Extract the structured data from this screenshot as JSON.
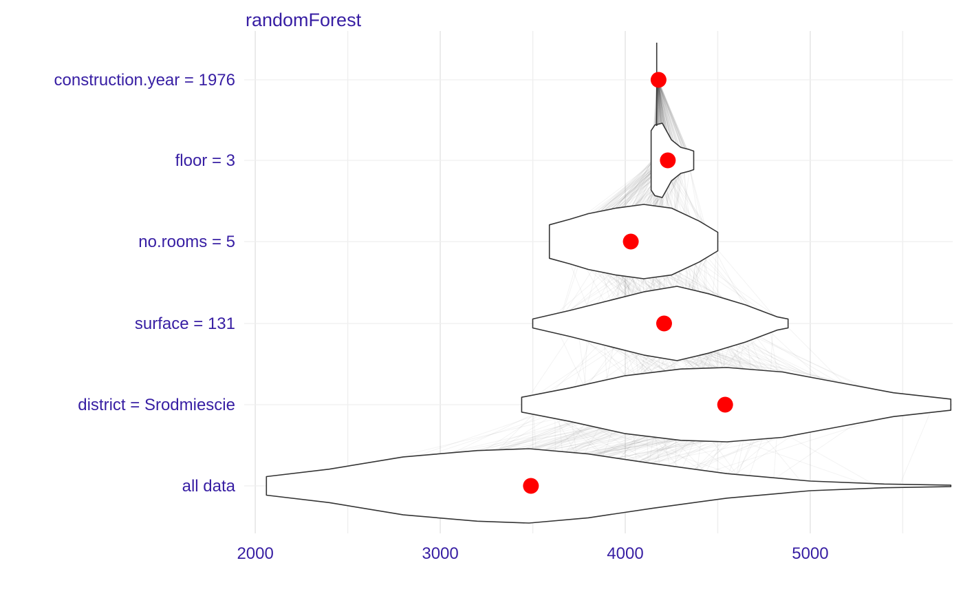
{
  "chart_data": {
    "type": "violin",
    "title": "randomForest",
    "xlabel": "",
    "ylabel": "",
    "xlim": [
      1940,
      5770
    ],
    "x_ticks": [
      2000,
      3000,
      4000,
      5000
    ],
    "x_minor": [
      2500,
      3500,
      4500,
      5500
    ],
    "categories": [
      "construction.year = 1976",
      "floor = 3",
      "no.rooms = 5",
      "surface = 131",
      "district = Srodmiescie",
      "all data"
    ],
    "points": [
      4180,
      4230,
      4030,
      4210,
      4540,
      3490
    ],
    "distributions": [
      {
        "label": "construction.year = 1976",
        "min": 4170,
        "max": 4180,
        "width": [
          [
            4170,
            0.0
          ],
          [
            4180,
            0.0
          ]
        ]
      },
      {
        "label": "floor = 3",
        "min": 4140,
        "max": 4370,
        "width": [
          [
            4140,
            0.8
          ],
          [
            4160,
            0.95
          ],
          [
            4200,
            1.0
          ],
          [
            4250,
            0.55
          ],
          [
            4300,
            0.35
          ],
          [
            4340,
            0.3
          ],
          [
            4370,
            0.25
          ]
        ]
      },
      {
        "label": "no.rooms = 5",
        "min": 3590,
        "max": 4500,
        "width": [
          [
            3590,
            0.45
          ],
          [
            3700,
            0.6
          ],
          [
            3800,
            0.75
          ],
          [
            3950,
            0.9
          ],
          [
            4100,
            1.0
          ],
          [
            4250,
            0.9
          ],
          [
            4400,
            0.55
          ],
          [
            4500,
            0.25
          ]
        ]
      },
      {
        "label": "surface = 131",
        "min": 3500,
        "max": 4880,
        "width": [
          [
            3500,
            0.12
          ],
          [
            3700,
            0.35
          ],
          [
            3900,
            0.6
          ],
          [
            4100,
            0.85
          ],
          [
            4280,
            1.0
          ],
          [
            4450,
            0.8
          ],
          [
            4650,
            0.5
          ],
          [
            4820,
            0.18
          ],
          [
            4880,
            0.12
          ]
        ]
      },
      {
        "label": "district = Srodmiescie",
        "min": 3440,
        "max": 5760,
        "width": [
          [
            3440,
            0.2
          ],
          [
            3700,
            0.45
          ],
          [
            4000,
            0.78
          ],
          [
            4300,
            0.96
          ],
          [
            4550,
            1.0
          ],
          [
            4850,
            0.88
          ],
          [
            5150,
            0.6
          ],
          [
            5450,
            0.32
          ],
          [
            5760,
            0.15
          ]
        ]
      },
      {
        "label": "all data",
        "min": 2060,
        "max": 5760,
        "width": [
          [
            2060,
            0.25
          ],
          [
            2400,
            0.45
          ],
          [
            2800,
            0.78
          ],
          [
            3200,
            0.95
          ],
          [
            3480,
            1.0
          ],
          [
            3800,
            0.86
          ],
          [
            4150,
            0.6
          ],
          [
            4550,
            0.33
          ],
          [
            5000,
            0.13
          ],
          [
            5400,
            0.05
          ],
          [
            5760,
            0.02
          ]
        ]
      }
    ],
    "grid": true,
    "colors": {
      "text": "#371ea3",
      "point": "#ff0000",
      "violin_fill": "#ffffff",
      "violin_stroke": "#333333",
      "grid_major": "#e6e6e6",
      "grid_minor": "#efefef",
      "path_lines": "#555555"
    }
  }
}
